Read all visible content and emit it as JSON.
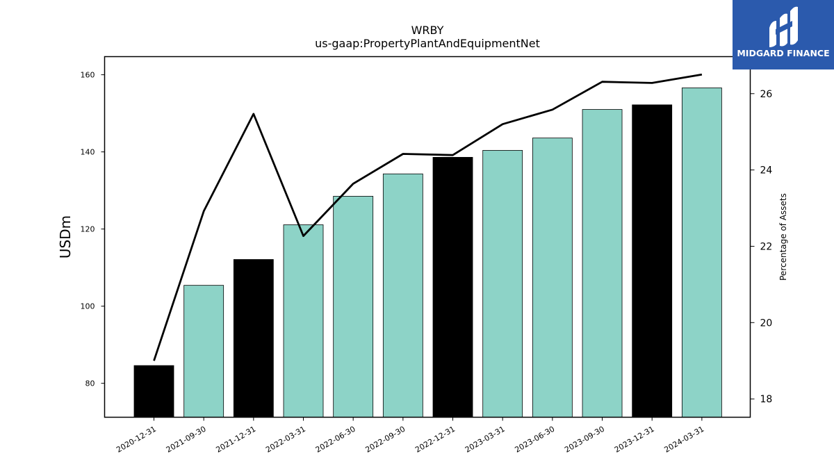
{
  "chart_data": {
    "type": "bar",
    "title": "WRBY",
    "subtitle": "us-gaap:PropertyPlantAndEquipmentNet",
    "ylabel": "USDm",
    "y2label": "Percentage of Assets",
    "categories": [
      "2020-12-31",
      "2021-09-30",
      "2021-12-31",
      "2022-03-31",
      "2022-06-30",
      "2022-09-30",
      "2022-12-31",
      "2023-03-31",
      "2023-06-30",
      "2023-09-30",
      "2023-12-31",
      "2024-03-31"
    ],
    "series": [
      {
        "chart": "bar",
        "axis": "left",
        "values": [
          84.6,
          105.4,
          112.1,
          121.1,
          128.5,
          134.3,
          138.6,
          140.4,
          143.6,
          151.0,
          152.2,
          156.6
        ],
        "colors": [
          "#000000",
          "#8dd3c7",
          "#000000",
          "#8dd3c7",
          "#8dd3c7",
          "#8dd3c7",
          "#000000",
          "#8dd3c7",
          "#8dd3c7",
          "#8dd3c7",
          "#000000",
          "#8dd3c7"
        ]
      },
      {
        "chart": "line",
        "axis": "right",
        "values": [
          19.0,
          22.92,
          25.47,
          22.27,
          23.64,
          24.42,
          24.39,
          25.2,
          25.58,
          26.31,
          26.28,
          26.5
        ],
        "color": "#000000"
      }
    ],
    "ylim": [
      71.2,
      164.7
    ],
    "yticks": [
      "80",
      "100",
      "120",
      "140",
      "160"
    ],
    "y2lim": [
      17.52,
      26.97
    ],
    "y2ticks": [
      "18",
      "20",
      "22",
      "24",
      "26"
    ],
    "grid": false,
    "legend": "none"
  },
  "logo": {
    "text": "MIDGARD FINANCE",
    "bg_color": "#2b5aad"
  }
}
